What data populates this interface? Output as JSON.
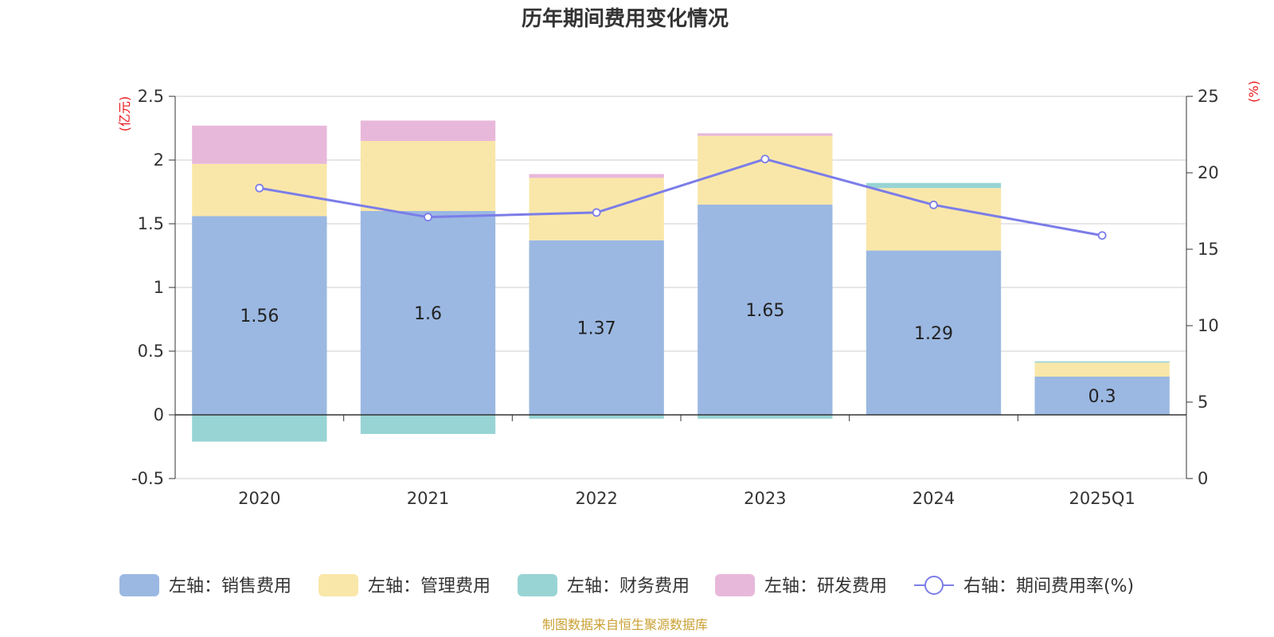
{
  "chart_data": {
    "type": "bar",
    "title": "历年期间费用变化情况",
    "categories": [
      "2020",
      "2021",
      "2022",
      "2023",
      "2024",
      "2025Q1"
    ],
    "left_axis": {
      "unit": "(亿元)",
      "ticks": [
        "-0.5",
        "0",
        "0.5",
        "1",
        "1.5",
        "2",
        "2.5"
      ],
      "ylim": [
        -0.5,
        2.5
      ]
    },
    "right_axis": {
      "unit": "(%)",
      "ticks": [
        "0",
        "5",
        "10",
        "15",
        "20",
        "25"
      ],
      "ylim": [
        0,
        25
      ]
    },
    "series": [
      {
        "name": "左轴：销售费用",
        "color": "#9bb8e2",
        "values": [
          1.56,
          1.6,
          1.37,
          1.65,
          1.29,
          0.3
        ],
        "labels": [
          "1.56",
          "1.6",
          "1.37",
          "1.65",
          "1.29",
          "0.3"
        ]
      },
      {
        "name": "左轴：管理费用",
        "color": "#f9e7a9",
        "values": [
          0.41,
          0.55,
          0.49,
          0.54,
          0.49,
          0.11
        ]
      },
      {
        "name": "左轴：财务费用",
        "color": "#98d4d4",
        "values": [
          -0.21,
          -0.15,
          -0.03,
          -0.03,
          0.04,
          0.01
        ]
      },
      {
        "name": "左轴：研发费用",
        "color": "#e8b8da",
        "values": [
          0.3,
          0.16,
          0.03,
          0.02,
          0.0,
          0.0
        ]
      }
    ],
    "line_series": {
      "name": "右轴：期间费用率(%)",
      "color": "#7b7de8",
      "values": [
        19.0,
        17.1,
        17.4,
        20.9,
        17.9,
        15.9
      ]
    },
    "grid": true,
    "legend_position": "bottom"
  },
  "footer": {
    "source": "制图数据来自恒生聚源数据库"
  }
}
